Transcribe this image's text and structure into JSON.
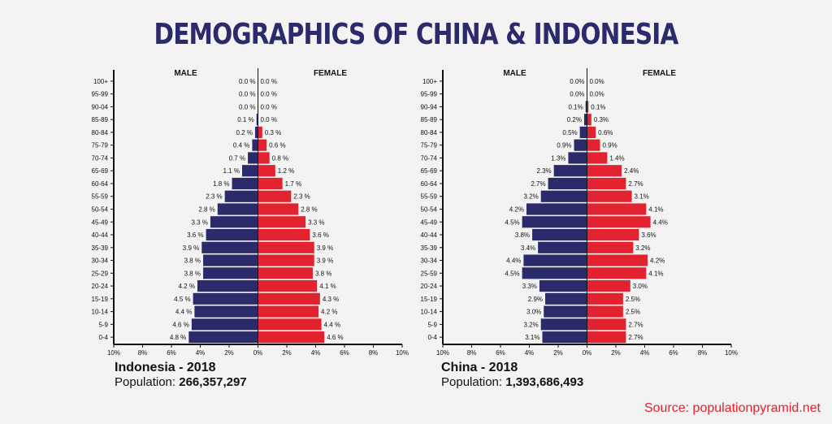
{
  "title": "DEMOGRAPHICS OF CHINA & INDONESIA",
  "source": "Source: populationpyramid.net",
  "colors": {
    "male": "#2b2a6b",
    "female": "#e2222e",
    "axis": "#111111",
    "background": "#f3f3f3"
  },
  "chart_data": [
    {
      "type": "bar",
      "orientation": "horizontal-pyramid",
      "country": "Indonesia - 2018",
      "population_label": "Population:",
      "population": "266,357,297",
      "male_label": "MALE",
      "female_label": "FEMALE",
      "categories": [
        "100+",
        "95-99",
        "90-04",
        "85-89",
        "80-84",
        "75-79",
        "70-74",
        "65-69",
        "60-64",
        "55-59",
        "50-54",
        "45-49",
        "40-44",
        "35-39",
        "30-34",
        "25-29",
        "20-24",
        "15-19",
        "10-14",
        "5-9",
        "0-4"
      ],
      "series": [
        {
          "name": "MALE",
          "values": [
            0.0,
            0.0,
            0.0,
            0.1,
            0.2,
            0.4,
            0.7,
            1.1,
            1.8,
            2.3,
            2.8,
            3.3,
            3.6,
            3.9,
            3.8,
            3.8,
            4.2,
            4.5,
            4.4,
            4.6,
            4.8
          ]
        },
        {
          "name": "FEMALE",
          "values": [
            0.0,
            0.0,
            0.0,
            0.0,
            0.3,
            0.6,
            0.8,
            1.2,
            1.7,
            2.3,
            2.8,
            3.3,
            3.6,
            3.9,
            3.9,
            3.8,
            4.1,
            4.3,
            4.2,
            4.4,
            4.6
          ]
        }
      ],
      "male_labels": [
        "0.0 %",
        "0.0 %",
        "0.0 %",
        "0.1 %",
        "0.2 %",
        "0.4 %",
        "0.7 %",
        "1.1 %",
        "1.8 %",
        "2.3 %",
        "2.8 %",
        "3.3 %",
        "3.6 %",
        "3.9 %",
        "3.8 %",
        "3.8 %",
        "4.2 %",
        "4.5 %",
        "4.4 %",
        "4.6 %",
        "4.8 %"
      ],
      "female_labels": [
        "0.0 %",
        "0.0 %",
        "0.0 %",
        "0.0 %",
        "0.3 %",
        "0.6 %",
        "0.8 %",
        "1.2 %",
        "1.7 %",
        "2.3 %",
        "2.8 %",
        "3.3 %",
        "3.6 %",
        "3.9 %",
        "3.9 %",
        "3.8 %",
        "4.1 %",
        "4.3 %",
        "4.2 %",
        "4.4 %",
        "4.6 %"
      ],
      "xticks": [
        "10%",
        "8%",
        "6%",
        "4%",
        "2%",
        "0%",
        "2%",
        "4%",
        "6%",
        "8%",
        "10%"
      ],
      "xlim": [
        -10,
        10
      ]
    },
    {
      "type": "bar",
      "orientation": "horizontal-pyramid",
      "country": "China - 2018",
      "population_label": "Population:",
      "population": "1,393,686,493",
      "male_label": "MALE",
      "female_label": "FEMALE",
      "categories": [
        "100+",
        "95-99",
        "90-94",
        "85-89",
        "80-84",
        "75-79",
        "70-74",
        "65-69",
        "60-64",
        "55-59",
        "50-54",
        "45-49",
        "40-44",
        "35-39",
        "30-34",
        "25-59",
        "20-24",
        "15-19",
        "10-14",
        "5-9",
        "0-4"
      ],
      "series": [
        {
          "name": "MALE",
          "values": [
            0.0,
            0.0,
            0.1,
            0.2,
            0.5,
            0.9,
            1.3,
            2.3,
            2.7,
            3.2,
            4.2,
            4.5,
            3.8,
            3.4,
            4.4,
            4.5,
            3.3,
            2.9,
            3.0,
            3.2,
            3.1
          ]
        },
        {
          "name": "FEMALE",
          "values": [
            0.0,
            0.0,
            0.1,
            0.3,
            0.6,
            0.9,
            1.4,
            2.4,
            2.7,
            3.1,
            4.1,
            4.4,
            3.6,
            3.2,
            4.2,
            4.1,
            3.0,
            2.5,
            2.5,
            2.7,
            2.7
          ]
        }
      ],
      "male_labels": [
        "0.0%",
        "0.0%",
        "0.1%",
        "0.2%",
        "0.5%",
        "0.9%",
        "1.3%",
        "2.3%",
        "2.7%",
        "3.2%",
        "4.2%",
        "4.5%",
        "3.8%",
        "3.4%",
        "4.4%",
        "4.5%",
        "3.3%",
        "2.9%",
        "3.0%",
        "3.2%",
        "3.1%"
      ],
      "female_labels": [
        "0.0%",
        "0.0%",
        "0.1%",
        "0.3%",
        "0.6%",
        "0.9%",
        "1.4%",
        "2.4%",
        "2.7%",
        "3.1%",
        "4.1%",
        "4.4%",
        "3.6%",
        "3.2%",
        "4.2%",
        "4.1%",
        "3.0%",
        "2.5%",
        "2.5%",
        "2.7%",
        "2.7%"
      ],
      "xticks": [
        "10%",
        "8%",
        "6%",
        "4%",
        "2%",
        "0%",
        "2%",
        "4%",
        "6%",
        "8%",
        "10%"
      ],
      "xlim": [
        -10,
        10
      ]
    }
  ]
}
